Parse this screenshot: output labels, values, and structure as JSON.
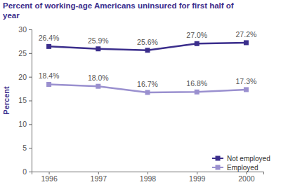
{
  "chart_data": {
    "type": "line",
    "title": "Percent of working-age Americans uninsured for first half of year",
    "y_label": "Percent",
    "categories": [
      "1996",
      "1997",
      "1998",
      "1999",
      "2000"
    ],
    "series": [
      {
        "name": "Not employed",
        "color": "#3b2e8c",
        "values": [
          26.4,
          25.9,
          25.6,
          27.0,
          27.2
        ],
        "value_labels": [
          "26.4%",
          "25.9%",
          "25.6%",
          "27.0%",
          "27.2%"
        ]
      },
      {
        "name": "Employed",
        "color": "#9a90cf",
        "values": [
          18.4,
          18.0,
          16.7,
          16.8,
          17.3
        ],
        "value_labels": [
          "18.4%",
          "18.0%",
          "16.7%",
          "16.8%",
          "17.3%"
        ]
      }
    ],
    "ylim": [
      0,
      30
    ],
    "yticks": [
      0,
      5,
      10,
      15,
      20,
      25,
      30
    ],
    "grid": false,
    "legend": "lower right",
    "data_labels": true,
    "marker": "square"
  }
}
